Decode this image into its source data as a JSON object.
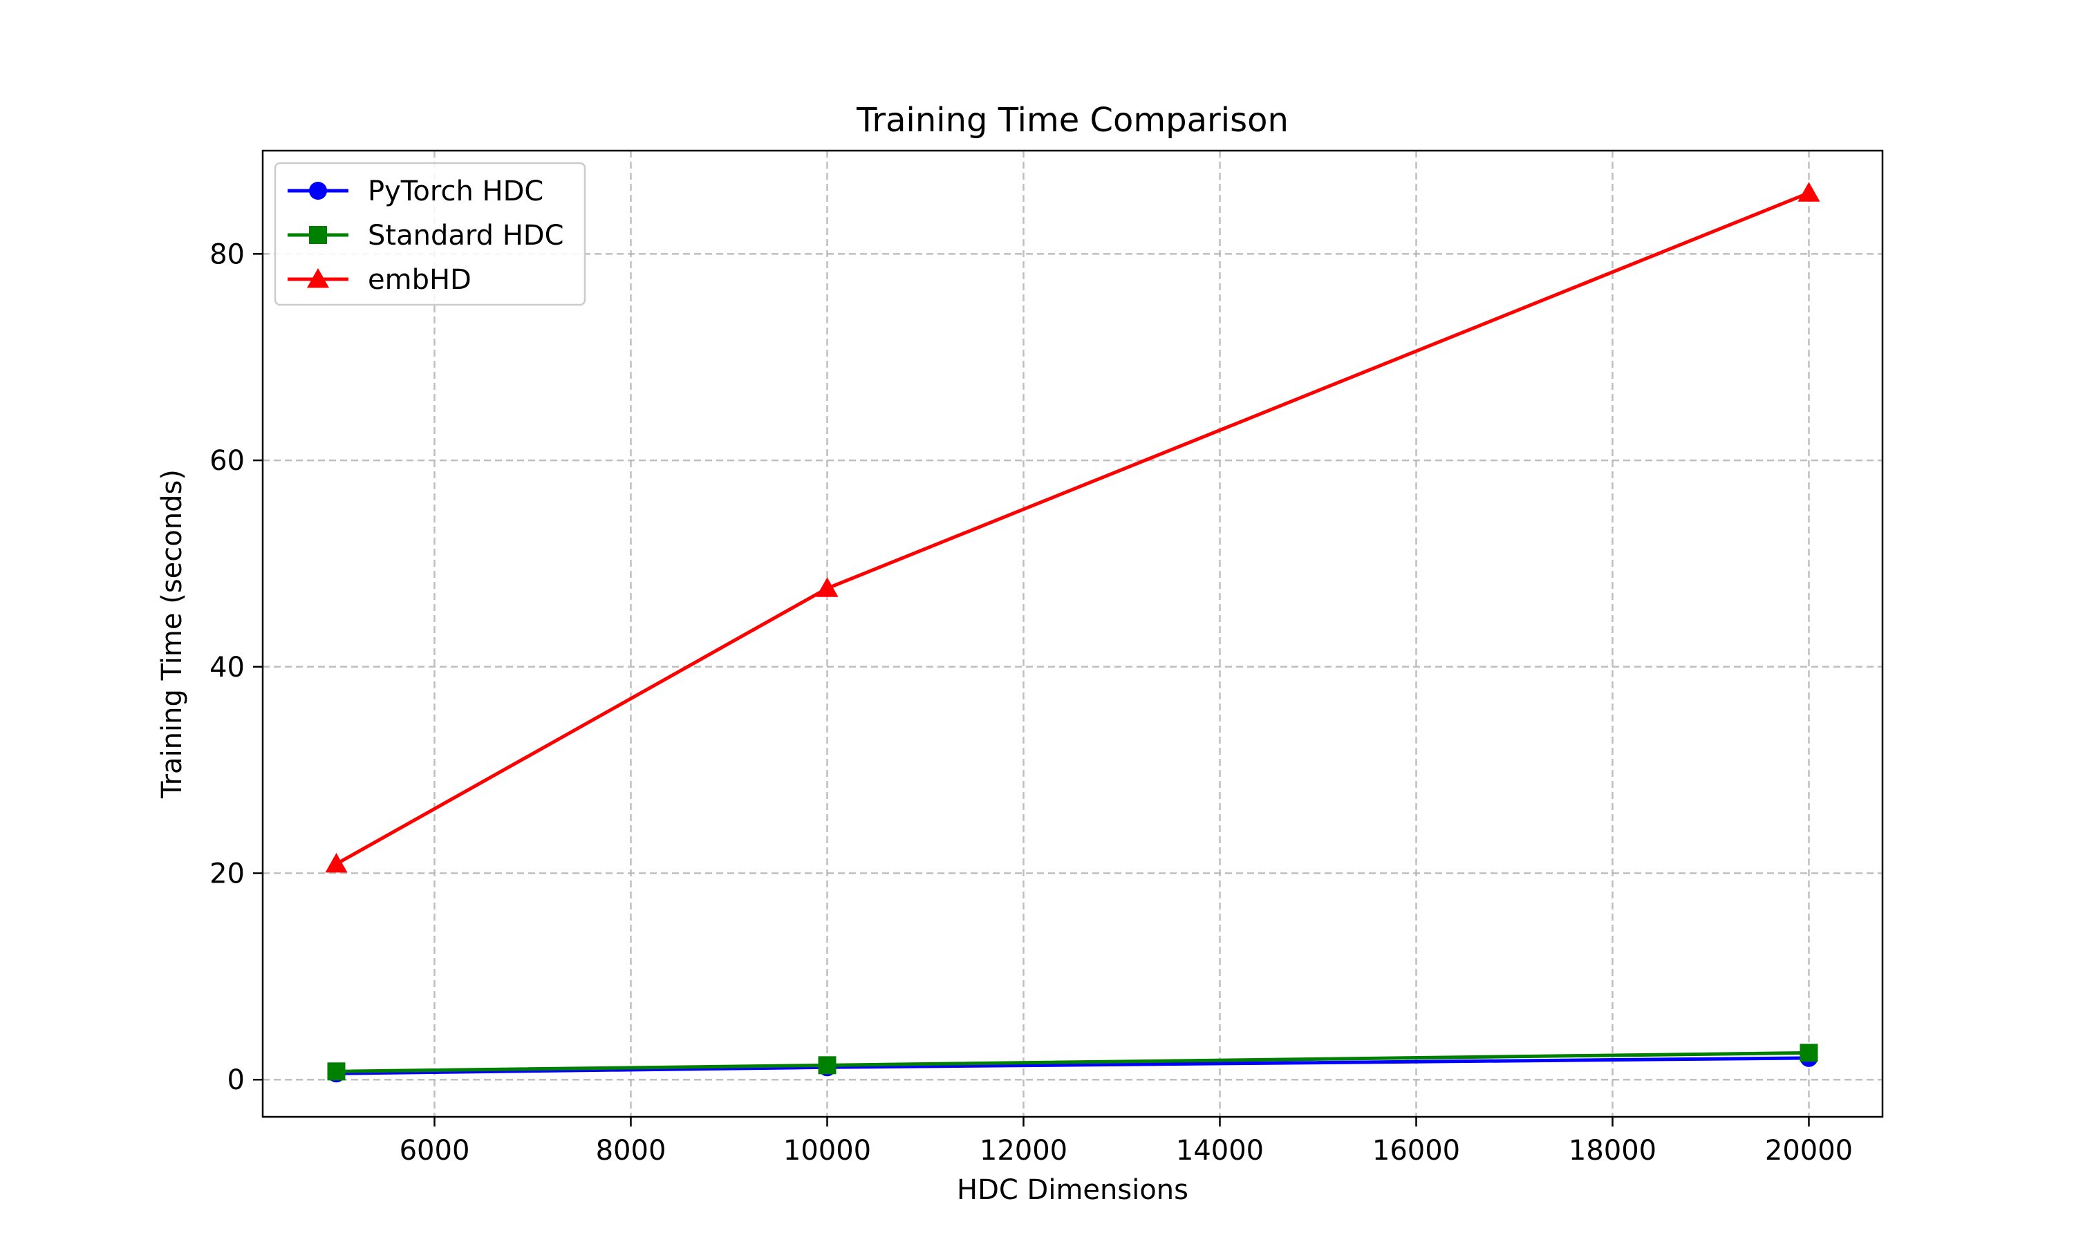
{
  "chart_data": {
    "type": "line",
    "title": "Training Time Comparison",
    "xlabel": "HDC Dimensions",
    "ylabel": "Training Time (seconds)",
    "xlim": [
      4250,
      20750
    ],
    "ylim": [
      -3.6,
      90
    ],
    "xticks": [
      6000,
      8000,
      10000,
      12000,
      14000,
      16000,
      18000,
      20000
    ],
    "yticks": [
      0,
      20,
      40,
      60,
      80
    ],
    "grid": true,
    "legend_position": "upper-left",
    "x": [
      5000,
      10000,
      20000
    ],
    "series": [
      {
        "name": "PyTorch HDC",
        "values": [
          0.6,
          1.2,
          2.1
        ],
        "color": "#0000ff",
        "marker": "circle"
      },
      {
        "name": "Standard HDC",
        "values": [
          0.8,
          1.4,
          2.6
        ],
        "color": "#008000",
        "marker": "square"
      },
      {
        "name": "embHD",
        "values": [
          20.9,
          47.6,
          85.9
        ],
        "color": "#ff0000",
        "marker": "triangle"
      }
    ]
  }
}
